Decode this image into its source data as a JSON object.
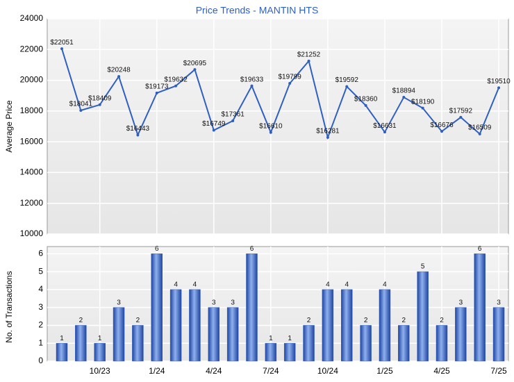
{
  "chart_data": [
    {
      "type": "line",
      "title": "Price Trends - MANTIN HTS",
      "y_label": "Average Price",
      "color": "#2f5fbf",
      "values": [
        22051,
        18041,
        18409,
        20248,
        16443,
        19173,
        19632,
        20695,
        16749,
        17361,
        19633,
        16610,
        19799,
        21252,
        16281,
        19592,
        18360,
        16631,
        18894,
        18190,
        16676,
        17592,
        16509,
        19510
      ],
      "value_labels": [
        "$22051",
        "$18041",
        "$18409",
        "$20248",
        "$16443",
        "$19173",
        "$19632",
        "$20695",
        "$16749",
        "$17361",
        "$19633",
        "$16610",
        "$19799",
        "$21252",
        "$16281",
        "$19592",
        "$18360",
        "$16631",
        "$18894",
        "$18190",
        "$16676",
        "$17592",
        "$16509",
        "$19510"
      ],
      "ylim": [
        10000,
        24000
      ],
      "yticks": [
        10000,
        12000,
        14000,
        16000,
        18000,
        20000,
        22000,
        24000
      ],
      "grid": true
    },
    {
      "type": "bar",
      "y_label": "No. of Transactions",
      "color": "#3a66c4",
      "categories": [
        null,
        null,
        "10/23",
        null,
        null,
        "1/24",
        null,
        null,
        "4/24",
        null,
        null,
        "7/24",
        null,
        null,
        "10/24",
        null,
        null,
        "1/25",
        null,
        null,
        "4/25",
        null,
        null,
        "7/25"
      ],
      "values": [
        1,
        2,
        1,
        3,
        2,
        6,
        4,
        4,
        3,
        3,
        6,
        1,
        1,
        2,
        4,
        4,
        2,
        4,
        2,
        5,
        2,
        3,
        6,
        3
      ],
      "ylim": [
        0,
        6.4
      ],
      "yticks": [
        0,
        1,
        2,
        3,
        4,
        5,
        6
      ],
      "grid": true
    }
  ]
}
